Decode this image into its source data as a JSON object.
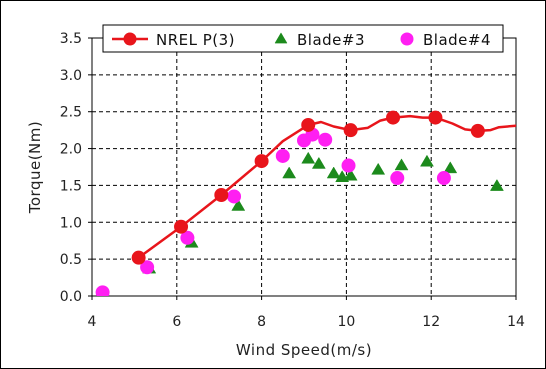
{
  "chart_data": {
    "type": "scatter",
    "xlabel": "Wind Speed(m/s)",
    "ylabel": "Torque(Nm)",
    "xlim": [
      4,
      14
    ],
    "ylim": [
      0,
      3.5
    ],
    "xticks": [
      4,
      6,
      8,
      10,
      12,
      14
    ],
    "yticks": [
      0.0,
      0.5,
      1.0,
      1.5,
      2.0,
      2.5,
      3.0,
      3.5
    ],
    "ytick_labels": [
      "0.0",
      "0.5",
      "1.0",
      "1.5",
      "2.0",
      "2.5",
      "3.0",
      "3.5"
    ],
    "grid": "dashed",
    "legend_position": "top",
    "series": [
      {
        "name": "NREL P(3)",
        "kind": "line",
        "color": "#e8151b",
        "marker": "circle",
        "x": [
          5.1,
          6.1,
          7.05,
          8.0,
          9.1,
          10.1,
          11.1,
          12.1,
          13.1
        ],
        "y": [
          0.52,
          0.94,
          1.37,
          1.83,
          2.32,
          2.25,
          2.42,
          2.42,
          2.24
        ],
        "curve_x": [
          5.1,
          6.1,
          7.05,
          8.0,
          8.5,
          9.1,
          9.4,
          9.7,
          10.1,
          10.5,
          10.8,
          11.1,
          11.5,
          11.8,
          12.1,
          12.5,
          12.8,
          13.1,
          13.4,
          13.6,
          14.0,
          14.3
        ],
        "curve_y": [
          0.52,
          0.94,
          1.37,
          1.83,
          2.1,
          2.32,
          2.36,
          2.3,
          2.25,
          2.28,
          2.38,
          2.42,
          2.44,
          2.42,
          2.42,
          2.34,
          2.26,
          2.24,
          2.25,
          2.29,
          2.31,
          2.29
        ]
      },
      {
        "name": "Blade#3",
        "kind": "scatter",
        "color": "#1c8a1c",
        "marker": "triangle",
        "x": [
          4.3,
          5.35,
          6.35,
          7.45,
          8.65,
          9.1,
          9.35,
          9.7,
          9.9,
          10.1,
          10.75,
          11.3,
          11.9,
          12.45,
          13.55
        ],
        "y": [
          0.0,
          0.37,
          0.72,
          1.22,
          1.66,
          1.86,
          1.79,
          1.66,
          1.61,
          1.63,
          1.71,
          1.77,
          1.82,
          1.73,
          1.49
        ]
      },
      {
        "name": "Blade#4",
        "kind": "scatter",
        "color": "#ff1ff2",
        "marker": "circle",
        "x": [
          4.25,
          5.3,
          6.25,
          7.35,
          8.5,
          9.0,
          9.2,
          9.5,
          10.05,
          11.2,
          12.3
        ],
        "y": [
          0.05,
          0.39,
          0.79,
          1.35,
          1.9,
          2.11,
          2.19,
          2.12,
          1.77,
          1.6,
          1.6
        ]
      }
    ]
  }
}
